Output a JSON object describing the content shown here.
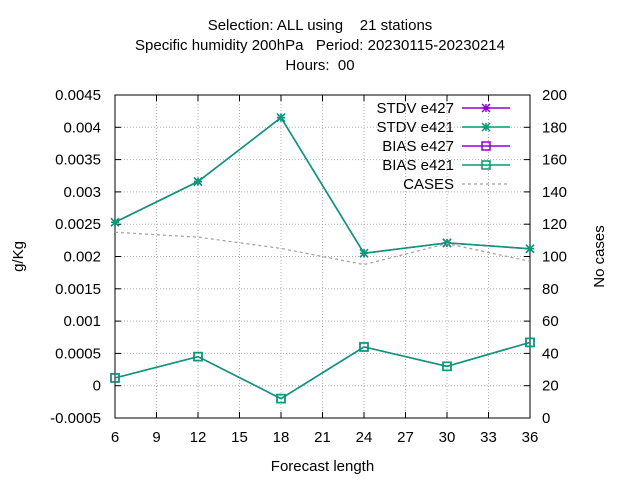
{
  "chart_data": {
    "type": "line",
    "title_lines": [
      "Selection: ALL using    21 stations",
      "Specific humidity 200hPa   Period: 20230115-20230214",
      "Hours:  00"
    ],
    "xlabel": "Forecast length",
    "ylabel": "g/Kg",
    "y2label": "No cases",
    "xlim": [
      6,
      36
    ],
    "ylim": [
      -0.0005,
      0.0045
    ],
    "y2lim": [
      0,
      200
    ],
    "x_ticks": [
      "6",
      "9",
      "12",
      "15",
      "18",
      "21",
      "24",
      "27",
      "30",
      "33",
      "36"
    ],
    "y_ticks": [
      "-0.0005",
      "0",
      "0.0005",
      "0.001",
      "0.0015",
      "0.002",
      "0.0025",
      "0.003",
      "0.0035",
      "0.004",
      "0.0045"
    ],
    "y2_ticks": [
      "0",
      "20",
      "40",
      "60",
      "80",
      "100",
      "120",
      "140",
      "160",
      "180",
      "200"
    ],
    "grid": true,
    "legend_position": "top-right",
    "x": [
      6,
      12,
      18,
      24,
      30,
      36
    ],
    "series": [
      {
        "name": "STDV e427",
        "axis": "y1",
        "marker": "x",
        "color": "#9400d3",
        "values": [
          0.00253,
          0.00316,
          0.00415,
          0.00205,
          0.00221,
          0.00212
        ]
      },
      {
        "name": "STDV e421",
        "axis": "y1",
        "marker": "x",
        "color": "#009e73",
        "values": [
          0.00253,
          0.00316,
          0.00415,
          0.00205,
          0.00221,
          0.00212
        ]
      },
      {
        "name": "BIAS e427",
        "axis": "y1",
        "marker": "square",
        "color": "#9400d3",
        "values": [
          0.00012,
          0.00045,
          -0.0002,
          0.0006,
          0.0003,
          0.00067
        ]
      },
      {
        "name": "BIAS e421",
        "axis": "y1",
        "marker": "square",
        "color": "#009e73",
        "values": [
          0.00012,
          0.00045,
          -0.0002,
          0.0006,
          0.0003,
          0.00067
        ]
      },
      {
        "name": "CASES",
        "axis": "y2",
        "marker": "none",
        "color": "#a0a0a0",
        "dashed": true,
        "values": [
          115,
          112,
          105,
          95,
          108,
          97
        ]
      }
    ]
  }
}
